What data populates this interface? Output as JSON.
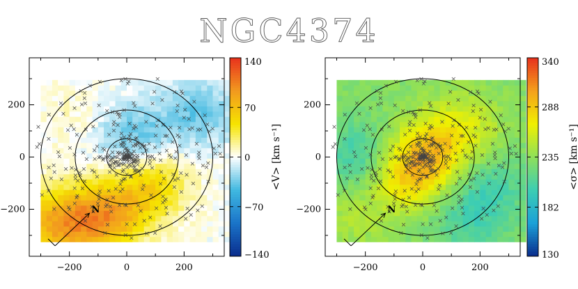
{
  "figure": {
    "title": "NGC4374"
  },
  "chart_data": [
    {
      "type": "heatmap",
      "title": "NGC4374",
      "xlabel": "",
      "ylabel": "",
      "xlim": [
        -340,
        340
      ],
      "ylim": [
        -380,
        380
      ],
      "x_ticks": [
        -200,
        0,
        200
      ],
      "y_ticks": [
        -200,
        0,
        200
      ],
      "x_tick_labels": [
        "−200",
        "0",
        "200"
      ],
      "y_tick_labels": [
        "−200",
        "0",
        "200"
      ],
      "map_extent": {
        "x": [
          -300,
          355
        ],
        "y": [
          -325,
          280
        ]
      },
      "circle_radii": [
        70,
        180,
        300
      ],
      "north_arrow": {
        "label": "N",
        "from": [
          -250,
          -340
        ],
        "to": [
          -130,
          -215
        ]
      },
      "colorbar": {
        "label": "<V> [km s⁻¹]",
        "range": [
          -140,
          140
        ],
        "ticks": [
          140,
          70,
          0,
          -70,
          -140
        ],
        "tick_labels": [
          "140",
          "70",
          "0",
          "−70",
          "−140"
        ],
        "colors": [
          "#0a2c8c",
          "#1a73c8",
          "#3fb8e0",
          "#ffffff",
          "#f6e400",
          "#f29a1f",
          "#e8321d"
        ]
      },
      "field": {
        "quantity": "mean velocity",
        "features": [
          {
            "x": -80,
            "y": -230,
            "value": 85
          },
          {
            "x": 80,
            "y": -110,
            "value": 55
          },
          {
            "x": -250,
            "y": -260,
            "value": 75
          },
          {
            "x": 20,
            "y": 70,
            "value": -40
          },
          {
            "x": 250,
            "y": 170,
            "value": -35
          },
          {
            "x": -180,
            "y": 150,
            "value": 10
          }
        ]
      }
    },
    {
      "type": "heatmap",
      "title": "NGC4374",
      "xlabel": "",
      "ylabel": "",
      "xlim": [
        -340,
        340
      ],
      "ylim": [
        -380,
        380
      ],
      "x_ticks": [
        -200,
        0,
        200
      ],
      "y_ticks": [
        -200,
        0,
        200
      ],
      "x_tick_labels": [
        "−200",
        "0",
        "200"
      ],
      "y_tick_labels": [
        "−200",
        "0",
        "200"
      ],
      "map_extent": {
        "x": [
          -300,
          355
        ],
        "y": [
          -325,
          280
        ]
      },
      "circle_radii": [
        70,
        180,
        300
      ],
      "north_arrow": {
        "label": "N",
        "from": [
          -250,
          -340
        ],
        "to": [
          -130,
          -215
        ]
      },
      "colorbar": {
        "label": "<σ> [km s⁻¹]",
        "range": [
          130,
          340
        ],
        "ticks": [
          340,
          288,
          235,
          182,
          130
        ],
        "tick_labels": [
          "340",
          "288",
          "235",
          "182",
          "130"
        ],
        "colors": [
          "#0a2c8c",
          "#1aa0d8",
          "#3ccdb4",
          "#8ee05a",
          "#f0f000",
          "#f5a11c",
          "#e8321d"
        ]
      },
      "field": {
        "quantity": "velocity dispersion",
        "features": [
          {
            "x": 30,
            "y": 20,
            "value": 280
          },
          {
            "x": -60,
            "y": -80,
            "value": 275
          },
          {
            "x": 150,
            "y": 120,
            "value": 255
          },
          {
            "x": -220,
            "y": 0,
            "value": 200
          },
          {
            "x": 230,
            "y": -120,
            "value": 205
          },
          {
            "x": -250,
            "y": -230,
            "value": 245
          },
          {
            "x": 150,
            "y": -260,
            "value": 210
          }
        ]
      }
    }
  ]
}
